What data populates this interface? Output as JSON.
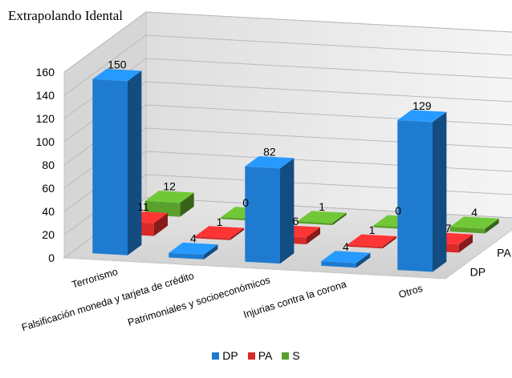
{
  "chart_data": {
    "type": "bar",
    "title": "Extrapolando Idental",
    "categories": [
      "Terrorismo",
      "Falsificación moneda y tarjeta de crédito",
      "Patrimoniales y socioeconómicos",
      "Injurias contra la corona",
      "Otros"
    ],
    "series": [
      {
        "name": "DP",
        "values": [
          150,
          4,
          82,
          4,
          129
        ]
      },
      {
        "name": "PA",
        "values": [
          11,
          1,
          6,
          1,
          7
        ]
      },
      {
        "name": "S",
        "values": [
          12,
          0,
          1,
          0,
          4
        ]
      }
    ],
    "ylim": [
      0,
      160
    ],
    "yticks": [
      0,
      20,
      40,
      60,
      80,
      100,
      120,
      140,
      160
    ],
    "grid": true,
    "legend": "bottom",
    "colors": {
      "DP": "#1f7bd0",
      "PA": "#d92a2a",
      "S": "#5aa02c"
    }
  }
}
